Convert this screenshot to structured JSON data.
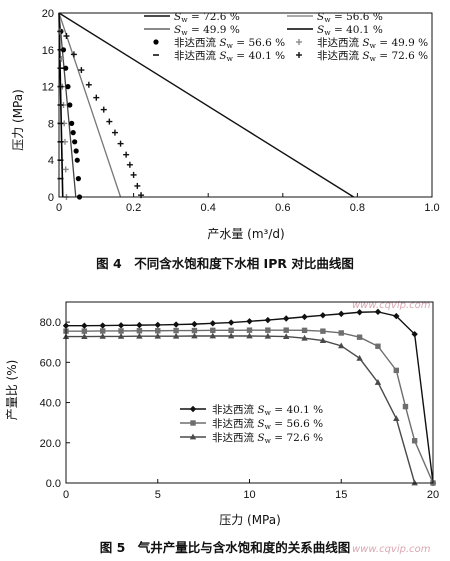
{
  "watermark": "www.cqvip.com",
  "chart_data": [
    {
      "type": "line",
      "caption": "图 4　不同含水饱和度下水相 IPR 对比曲线图",
      "xlabel": "产水量 (m³/d)",
      "ylabel": "压力 (MPa)",
      "xlim": [
        0,
        1.0
      ],
      "ylim": [
        0,
        20
      ],
      "xticks": [
        0,
        0.2,
        0.4,
        0.6,
        0.8,
        1.0
      ],
      "xtick_labels": [
        "0",
        "0.2",
        "0.4",
        "0.6",
        "0.8",
        "1.0"
      ],
      "yticks": [
        0,
        4,
        8,
        12,
        16,
        20
      ],
      "ytick_labels": [
        "0",
        "4",
        "8",
        "12",
        "16",
        "20"
      ],
      "legend_position": "top-right",
      "series": [
        {
          "name": "Sw = 72.6 %",
          "style": "line",
          "color": "#111111",
          "width": 1.4,
          "x": [
            0,
            0.79
          ],
          "y": [
            20,
            0
          ]
        },
        {
          "name": "Sw = 56.6 %",
          "style": "line",
          "color": "#777777",
          "width": 1.3,
          "x": [
            0,
            0.165
          ],
          "y": [
            20,
            0
          ]
        },
        {
          "name": "Sw = 49.9 %",
          "style": "line",
          "color": "#444444",
          "width": 1.3,
          "x": [
            0,
            0.045
          ],
          "y": [
            20,
            0
          ]
        },
        {
          "name": "Sw = 40.1 %",
          "style": "line",
          "color": "#000000",
          "width": 1.6,
          "x": [
            0,
            0.01
          ],
          "y": [
            20,
            0
          ]
        },
        {
          "name": "非达西流 Sw = 56.6 %",
          "style": "dot",
          "color": "#000000",
          "x": [
            0.005,
            0.012,
            0.018,
            0.024,
            0.029,
            0.034,
            0.038,
            0.042,
            0.046,
            0.049,
            0.052,
            0.055
          ],
          "y": [
            18,
            16,
            14,
            12,
            10,
            8,
            7,
            6,
            5,
            4,
            2,
            0
          ]
        },
        {
          "name": "非达西流 Sw = 49.9 %",
          "style": "plus",
          "color": "#8a8a8a",
          "x": [
            0.003,
            0.006,
            0.009,
            0.012,
            0.014,
            0.016,
            0.018,
            0.02
          ],
          "y": [
            18,
            15,
            12,
            10,
            8,
            6,
            3,
            0
          ]
        },
        {
          "name": "非达西流 Sw = 40.1 %",
          "style": "dash",
          "color": "#111111",
          "x": [
            0.004,
            0.004,
            0.004,
            0.004,
            0.004,
            0.004,
            0.004,
            0.004,
            0.004
          ],
          "y": [
            18,
            16,
            14,
            12,
            10,
            8,
            6,
            4,
            2
          ]
        },
        {
          "name": "非达西流 Sw = 72.6 %",
          "style": "plus",
          "color": "#111111",
          "x": [
            0.02,
            0.04,
            0.06,
            0.08,
            0.1,
            0.12,
            0.135,
            0.15,
            0.165,
            0.18,
            0.19,
            0.2,
            0.21,
            0.22
          ],
          "y": [
            17.5,
            15.5,
            13.8,
            12.2,
            10.8,
            9.5,
            8.2,
            7,
            5.8,
            4.6,
            3.5,
            2.4,
            1.2,
            0.2
          ]
        }
      ]
    },
    {
      "type": "line",
      "caption": "图 5　气井产量比与含水饱和度的关系曲线图",
      "xlabel": "压力 (MPa)",
      "ylabel": "产量比 (%)",
      "xlim": [
        0,
        20
      ],
      "ylim": [
        0,
        90
      ],
      "xticks": [
        0,
        5,
        10,
        15,
        20
      ],
      "xtick_labels": [
        "0",
        "5",
        "10",
        "15",
        "20"
      ],
      "yticks": [
        0,
        20,
        40,
        60,
        80
      ],
      "ytick_labels": [
        "0.0",
        "20.0",
        "40.0",
        "60.0",
        "80.0"
      ],
      "legend_position": "bottom-left",
      "series": [
        {
          "name": "非达西流 Sw = 40.1 %",
          "marker": "diamond",
          "color": "#111111",
          "x": [
            0,
            1,
            2,
            3,
            4,
            5,
            6,
            7,
            8,
            9,
            10,
            11,
            12,
            13,
            14,
            15,
            16,
            17,
            18,
            19,
            20
          ],
          "y": [
            78.2,
            78.2,
            78.3,
            78.4,
            78.5,
            78.6,
            78.8,
            79,
            79.4,
            79.8,
            80.4,
            81,
            81.8,
            82.6,
            83.4,
            84.1,
            84.9,
            85.1,
            83,
            74,
            0
          ]
        },
        {
          "name": "非达西流 Sw = 56.6 %",
          "marker": "square",
          "color": "#6e6e6e",
          "x": [
            0,
            1,
            2,
            3,
            4,
            5,
            6,
            7,
            8,
            9,
            10,
            11,
            12,
            13,
            14,
            15,
            16,
            17,
            18,
            18.5,
            19,
            20
          ],
          "y": [
            75.5,
            75.5,
            75.6,
            75.6,
            75.7,
            75.7,
            75.8,
            75.8,
            75.9,
            75.9,
            76,
            76,
            76,
            75.9,
            75.5,
            74.6,
            72.5,
            68,
            56,
            38,
            21,
            0
          ]
        },
        {
          "name": "非达西流 Sw = 72.6 %",
          "marker": "triangle",
          "color": "#4a4a4a",
          "x": [
            0,
            1,
            2,
            3,
            4,
            5,
            6,
            7,
            8,
            9,
            10,
            11,
            12,
            13,
            14,
            15,
            16,
            17,
            18,
            19
          ],
          "y": [
            72.8,
            72.8,
            72.9,
            72.9,
            73,
            73,
            73,
            73.1,
            73.1,
            73.1,
            73.1,
            73,
            72.8,
            72,
            70.8,
            68.2,
            62,
            50,
            32,
            0
          ]
        }
      ]
    }
  ]
}
